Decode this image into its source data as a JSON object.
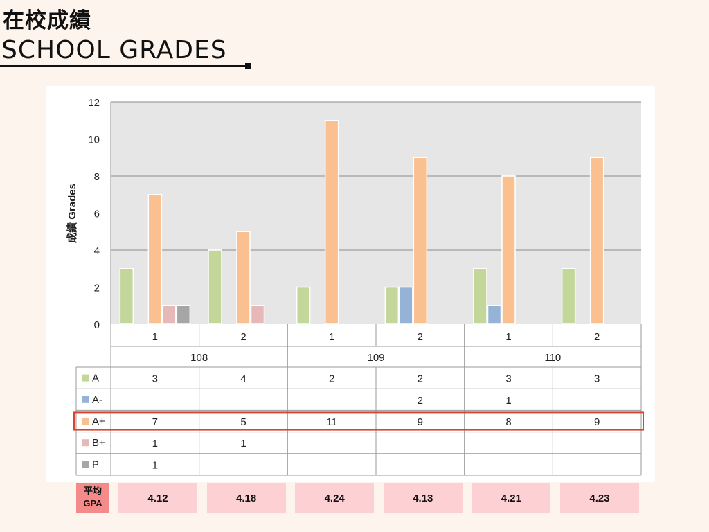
{
  "header": {
    "title_zh": "在校成績",
    "title_en": "SCHOOL GRADES"
  },
  "colors": {
    "A": "#c4d79b",
    "A-": "#95b3d7",
    "A+": "#fac090",
    "B+": "#e6b9b8",
    "P": "#a6a6a6",
    "plot_bg": "#e6e6e6",
    "highlight": "#d9452e",
    "gpa_label_bg": "#f58a8a",
    "gpa_cell_bg": "#fdd0d3"
  },
  "chart_data": {
    "type": "bar",
    "ylabel": "成績 Grades",
    "ylim": [
      0,
      12
    ],
    "yticks": [
      "0",
      "2",
      "4",
      "6",
      "8",
      "10",
      "12"
    ],
    "grid": true,
    "categories": [
      "1",
      "2",
      "1",
      "2",
      "1",
      "2"
    ],
    "groups": [
      "108",
      "109",
      "110"
    ],
    "series": [
      {
        "name": "A",
        "values": [
          3,
          4,
          2,
          2,
          3,
          3
        ]
      },
      {
        "name": "A-",
        "values": [
          null,
          null,
          null,
          2,
          1,
          null
        ]
      },
      {
        "name": "A+",
        "values": [
          7,
          5,
          11,
          9,
          8,
          9
        ]
      },
      {
        "name": "B+",
        "values": [
          1,
          1,
          null,
          null,
          null,
          null
        ]
      },
      {
        "name": "P",
        "values": [
          1,
          null,
          null,
          null,
          null,
          null
        ]
      }
    ],
    "highlighted_series": "A+"
  },
  "gpa": {
    "label_line1": "平均",
    "label_line2": "GPA",
    "values": [
      "4.12",
      "4.18",
      "4.24",
      "4.13",
      "4.21",
      "4.23"
    ]
  }
}
